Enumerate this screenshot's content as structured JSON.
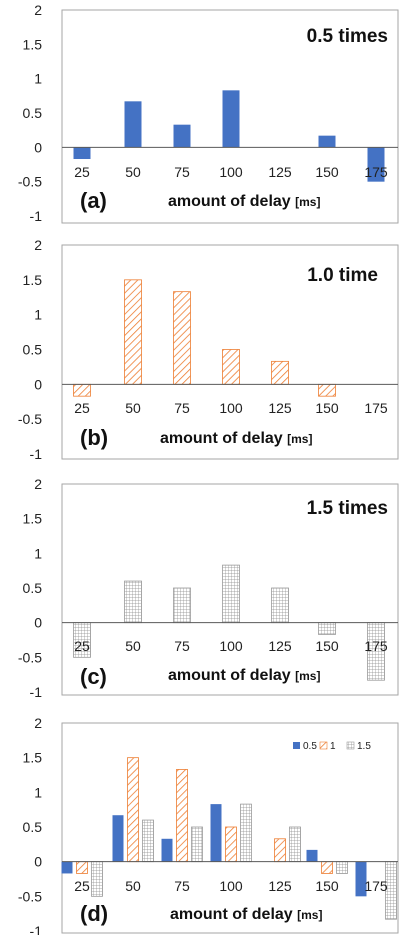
{
  "colors": {
    "s05": "#4472C4",
    "s10": "#ED7D31",
    "s15": "#A6A6A6",
    "frame": "#A6A6A6",
    "zero": "#595959"
  },
  "chart_data": [
    {
      "type": "bar",
      "panel_label": "(a)",
      "title": "0.5 times",
      "xlabel": "amount of delay",
      "xunit": "[ms]",
      "ylim": [
        -1,
        2
      ],
      "yticks": [
        "-1",
        "-0.5",
        "0",
        "0.5",
        "1",
        "1.5",
        "2"
      ],
      "categories": [
        "25",
        "50",
        "75",
        "100",
        "125",
        "150",
        "175"
      ],
      "series": [
        {
          "key": "s05",
          "pattern": "solid",
          "values": [
            -0.17,
            0.67,
            0.33,
            0.83,
            0,
            0.17,
            -0.5
          ]
        }
      ]
    },
    {
      "type": "bar",
      "panel_label": "(b)",
      "title": "1.0 time",
      "xlabel": "amount of delay",
      "xunit": "[ms]",
      "ylim": [
        -1,
        2
      ],
      "yticks": [
        "-1",
        "-0.5",
        "0",
        "0.5",
        "1",
        "1.5",
        "2"
      ],
      "categories": [
        "25",
        "50",
        "75",
        "100",
        "125",
        "150",
        "175"
      ],
      "series": [
        {
          "key": "s10",
          "pattern": "hatch",
          "values": [
            -0.17,
            1.5,
            1.33,
            0.5,
            0.33,
            -0.17,
            0
          ]
        }
      ]
    },
    {
      "type": "bar",
      "panel_label": "(c)",
      "title": "1.5 times",
      "xlabel": "amount of delay",
      "xunit": "[ms]",
      "ylim": [
        -1,
        2
      ],
      "yticks": [
        "-1",
        "-0.5",
        "0",
        "0.5",
        "1",
        "1.5",
        "2"
      ],
      "categories": [
        "25",
        "50",
        "75",
        "100",
        "125",
        "150",
        "175"
      ],
      "series": [
        {
          "key": "s15",
          "pattern": "grid",
          "values": [
            -0.5,
            0.6,
            0.5,
            0.83,
            0.5,
            -0.17,
            -0.83
          ]
        }
      ]
    },
    {
      "type": "bar",
      "panel_label": "(d)",
      "title": "",
      "xlabel": "amount of delay",
      "xunit": "[ms]",
      "ylim": [
        -1,
        2
      ],
      "yticks": [
        "-1",
        "-0.5",
        "0",
        "0.5",
        "1",
        "1.5",
        "2"
      ],
      "categories": [
        "25",
        "50",
        "75",
        "100",
        "125",
        "150",
        "175"
      ],
      "legend": "top-right",
      "series": [
        {
          "name": "0.5",
          "key": "s05",
          "pattern": "solid",
          "values": [
            -0.17,
            0.67,
            0.33,
            0.83,
            0,
            0.17,
            -0.5
          ]
        },
        {
          "name": "1",
          "key": "s10",
          "pattern": "hatch",
          "values": [
            -0.17,
            1.5,
            1.33,
            0.5,
            0.33,
            -0.17,
            0
          ]
        },
        {
          "name": "1.5",
          "key": "s15",
          "pattern": "grid",
          "values": [
            -0.5,
            0.6,
            0.5,
            0.83,
            0.5,
            -0.17,
            -0.83
          ]
        }
      ]
    }
  ]
}
